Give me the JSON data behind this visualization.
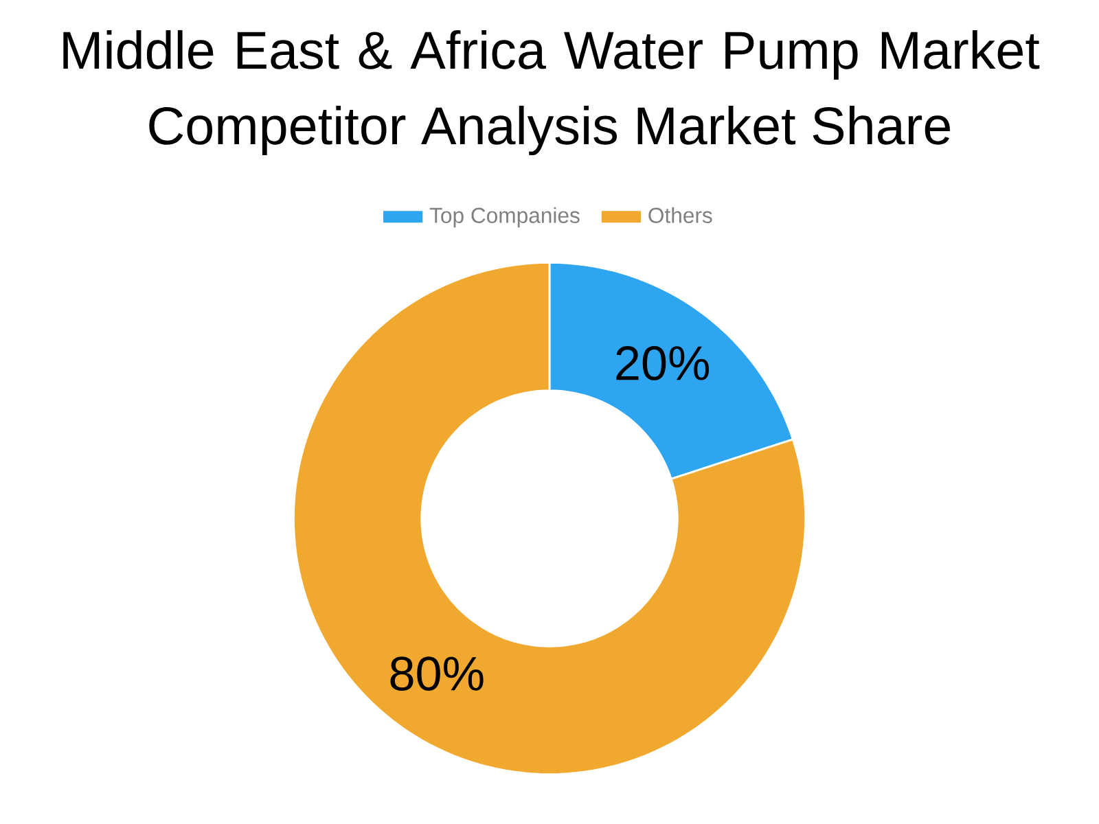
{
  "chart_data": {
    "type": "donut",
    "title": "Middle East & Africa Water Pump Market",
    "subtitle": "Competitor Analysis Market Share",
    "categories": [
      "Top Companies",
      "Others"
    ],
    "values": [
      20,
      80
    ],
    "colors": [
      "#2ea5f0",
      "#f0a92e"
    ],
    "value_labels": [
      "20%",
      "80%"
    ],
    "legend": "top"
  }
}
